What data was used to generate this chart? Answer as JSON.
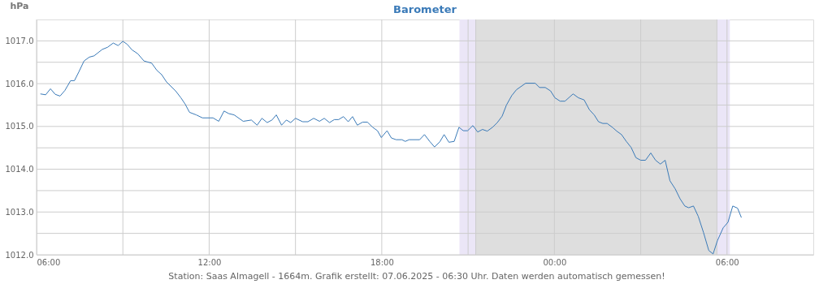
{
  "chart_data": {
    "type": "line",
    "title": "Barometer",
    "ylabel": "hPa",
    "annotations": [
      "Station: Saas Almagell - 1664m. Grafik erstellt: 07.06.2025 - 06:30 Uhr. Daten werden automatisch gemessen!"
    ],
    "series": [
      {
        "color": "#3a7ab8",
        "x": [
          "2025-06-06T06:08",
          "2025-06-06T06:19",
          "2025-06-06T06:29",
          "2025-06-06T06:39",
          "2025-06-06T06:49",
          "2025-06-06T06:59",
          "2025-06-06T07:11",
          "2025-06-06T07:19",
          "2025-06-06T07:28",
          "2025-06-06T07:39",
          "2025-06-06T07:50",
          "2025-06-06T08:00",
          "2025-06-06T08:17",
          "2025-06-06T08:28",
          "2025-06-06T08:40",
          "2025-06-06T08:50",
          "2025-06-06T09:00",
          "2025-06-06T09:09",
          "2025-06-06T09:19",
          "2025-06-06T09:31",
          "2025-06-06T09:44",
          "2025-06-06T10:00",
          "2025-06-06T10:11",
          "2025-06-06T10:21",
          "2025-06-06T10:31",
          "2025-06-06T10:50",
          "2025-06-06T11:01",
          "2025-06-06T11:10",
          "2025-06-06T11:19",
          "2025-06-06T11:33",
          "2025-06-06T11:46",
          "2025-06-06T12:08",
          "2025-06-06T12:20",
          "2025-06-06T12:31",
          "2025-06-06T12:41",
          "2025-06-06T12:52",
          "2025-06-06T13:11",
          "2025-06-06T13:28",
          "2025-06-06T13:40",
          "2025-06-06T13:50",
          "2025-06-06T14:01",
          "2025-06-06T14:11",
          "2025-06-06T14:20",
          "2025-06-06T14:31",
          "2025-06-06T14:41",
          "2025-06-06T14:50",
          "2025-06-06T15:00",
          "2025-06-06T15:15",
          "2025-06-06T15:26",
          "2025-06-06T15:38",
          "2025-06-06T15:50",
          "2025-06-06T16:00",
          "2025-06-06T16:11",
          "2025-06-06T16:21",
          "2025-06-06T16:30",
          "2025-06-06T16:40",
          "2025-06-06T16:50",
          "2025-06-06T16:59",
          "2025-06-06T17:09",
          "2025-06-06T17:20",
          "2025-06-06T17:30",
          "2025-06-06T17:41",
          "2025-06-06T17:51",
          "2025-06-06T17:59",
          "2025-06-06T18:11",
          "2025-06-06T18:20",
          "2025-06-06T18:30",
          "2025-06-06T18:42",
          "2025-06-06T18:49",
          "2025-06-06T18:57",
          "2025-06-06T19:19",
          "2025-06-06T19:29",
          "2025-06-06T19:40",
          "2025-06-06T19:50",
          "2025-06-06T20:01",
          "2025-06-06T20:10",
          "2025-06-06T20:20",
          "2025-06-06T20:31",
          "2025-06-06T20:41",
          "2025-06-06T20:50",
          "2025-06-06T20:59",
          "2025-06-06T21:10",
          "2025-06-06T21:20",
          "2025-06-06T21:30",
          "2025-06-06T21:40",
          "2025-06-06T21:51",
          "2025-06-06T22:01",
          "2025-06-06T22:11",
          "2025-06-06T22:20",
          "2025-06-06T22:31",
          "2025-06-06T22:41",
          "2025-06-06T22:50",
          "2025-06-06T23:00",
          "2025-06-06T23:20",
          "2025-06-06T23:29",
          "2025-06-06T23:41",
          "2025-06-06T23:52",
          "2025-06-07T00:01",
          "2025-06-07T00:12",
          "2025-06-07T00:22",
          "2025-06-07T00:39",
          "2025-06-07T00:50",
          "2025-06-07T01:02",
          "2025-06-07T01:13",
          "2025-06-07T01:23",
          "2025-06-07T01:32",
          "2025-06-07T01:41",
          "2025-06-07T01:50",
          "2025-06-07T02:02",
          "2025-06-07T02:10",
          "2025-06-07T02:20",
          "2025-06-07T02:30",
          "2025-06-07T02:40",
          "2025-06-07T02:50",
          "2025-06-07T03:00",
          "2025-06-07T03:10",
          "2025-06-07T03:21",
          "2025-06-07T03:31",
          "2025-06-07T03:41",
          "2025-06-07T03:51",
          "2025-06-07T04:01",
          "2025-06-07T04:12",
          "2025-06-07T04:22",
          "2025-06-07T04:32",
          "2025-06-07T04:40",
          "2025-06-07T04:50",
          "2025-06-07T05:00",
          "2025-06-07T05:11",
          "2025-06-07T05:22",
          "2025-06-07T05:31",
          "2025-06-07T05:40",
          "2025-06-07T05:52",
          "2025-06-07T06:02",
          "2025-06-07T06:12",
          "2025-06-07T06:22",
          "2025-06-07T06:30"
        ],
        "values": [
          1015.76,
          1015.74,
          1015.88,
          1015.75,
          1015.71,
          1015.84,
          1016.07,
          1016.07,
          1016.27,
          1016.53,
          1016.62,
          1016.65,
          1016.8,
          1016.85,
          1016.95,
          1016.89,
          1016.99,
          1016.92,
          1016.79,
          1016.7,
          1016.53,
          1016.48,
          1016.31,
          1016.21,
          1016.04,
          1015.83,
          1015.67,
          1015.52,
          1015.33,
          1015.27,
          1015.2,
          1015.2,
          1015.12,
          1015.36,
          1015.3,
          1015.27,
          1015.12,
          1015.15,
          1015.03,
          1015.19,
          1015.09,
          1015.15,
          1015.27,
          1015.03,
          1015.15,
          1015.09,
          1015.19,
          1015.11,
          1015.11,
          1015.19,
          1015.12,
          1015.19,
          1015.09,
          1015.16,
          1015.16,
          1015.23,
          1015.11,
          1015.23,
          1015.03,
          1015.1,
          1015.1,
          1014.98,
          1014.9,
          1014.74,
          1014.9,
          1014.73,
          1014.69,
          1014.69,
          1014.65,
          1014.69,
          1014.69,
          1014.81,
          1014.65,
          1014.52,
          1014.64,
          1014.81,
          1014.63,
          1014.65,
          1014.98,
          1014.9,
          1014.9,
          1015.02,
          1014.87,
          1014.93,
          1014.89,
          1014.98,
          1015.09,
          1015.24,
          1015.5,
          1015.72,
          1015.86,
          1015.93,
          1016.01,
          1016.01,
          1015.91,
          1015.91,
          1015.83,
          1015.67,
          1015.59,
          1015.59,
          1015.76,
          1015.67,
          1015.62,
          1015.39,
          1015.27,
          1015.11,
          1015.07,
          1015.07,
          1014.97,
          1014.89,
          1014.81,
          1014.65,
          1014.51,
          1014.27,
          1014.21,
          1014.21,
          1014.38,
          1014.21,
          1014.12,
          1014.21,
          1013.73,
          1013.54,
          1013.31,
          1013.14,
          1013.1,
          1013.14,
          1012.9,
          1012.52,
          1012.1,
          1012.02,
          1012.33,
          1012.63,
          1012.76,
          1013.14,
          1013.09,
          1012.87
        ]
      }
    ],
    "xlim": [
      "2025-06-06T06:00",
      "2025-06-07T09:00"
    ],
    "xticks": [
      {
        "value": "2025-06-06T06:00",
        "label": "06:00"
      },
      {
        "value": "2025-06-06T09:00",
        "label": null
      },
      {
        "value": "2025-06-06T12:00",
        "label": "12:00"
      },
      {
        "value": "2025-06-06T15:00",
        "label": null
      },
      {
        "value": "2025-06-06T18:00",
        "label": "18:00"
      },
      {
        "value": "2025-06-06T21:00",
        "label": null
      },
      {
        "value": "2025-06-07T00:00",
        "label": "00:00"
      },
      {
        "value": "2025-06-07T03:00",
        "label": null
      },
      {
        "value": "2025-06-07T06:00",
        "label": "06:00"
      }
    ],
    "ylim": [
      1012,
      1017.5
    ],
    "yticks": [
      {
        "value": 1012,
        "label": "1012.0"
      },
      {
        "value": 1012.5,
        "label": null
      },
      {
        "value": 1013,
        "label": "1013.0"
      },
      {
        "value": 1013.5,
        "label": null
      },
      {
        "value": 1014,
        "label": "1014.0"
      },
      {
        "value": 1014.5,
        "label": null
      },
      {
        "value": 1015,
        "label": "1015.0"
      },
      {
        "value": 1015.5,
        "label": null
      },
      {
        "value": 1016,
        "label": "1016.0"
      },
      {
        "value": 1016.5,
        "label": null
      },
      {
        "value": 1017,
        "label": "1017.0"
      }
    ],
    "bands": [
      {
        "axis": "x",
        "from": "2025-06-06T20:42",
        "to": "2025-06-06T21:16",
        "color": "#ebe6f7"
      },
      {
        "axis": "x",
        "from": "2025-06-06T21:16",
        "to": "2025-06-07T05:39",
        "color": "#dedede"
      },
      {
        "axis": "x",
        "from": "2025-06-07T05:39",
        "to": "2025-06-07T06:06",
        "color": "#ebe6f7"
      }
    ],
    "ref_lines": [
      {
        "axis": "x",
        "value": "2025-06-06T21:16",
        "color": "#cccccc"
      },
      {
        "axis": "x",
        "value": "2025-06-07T05:39",
        "color": "#cccccc"
      }
    ],
    "grid": true,
    "marker": "none",
    "line_style": "solid"
  }
}
